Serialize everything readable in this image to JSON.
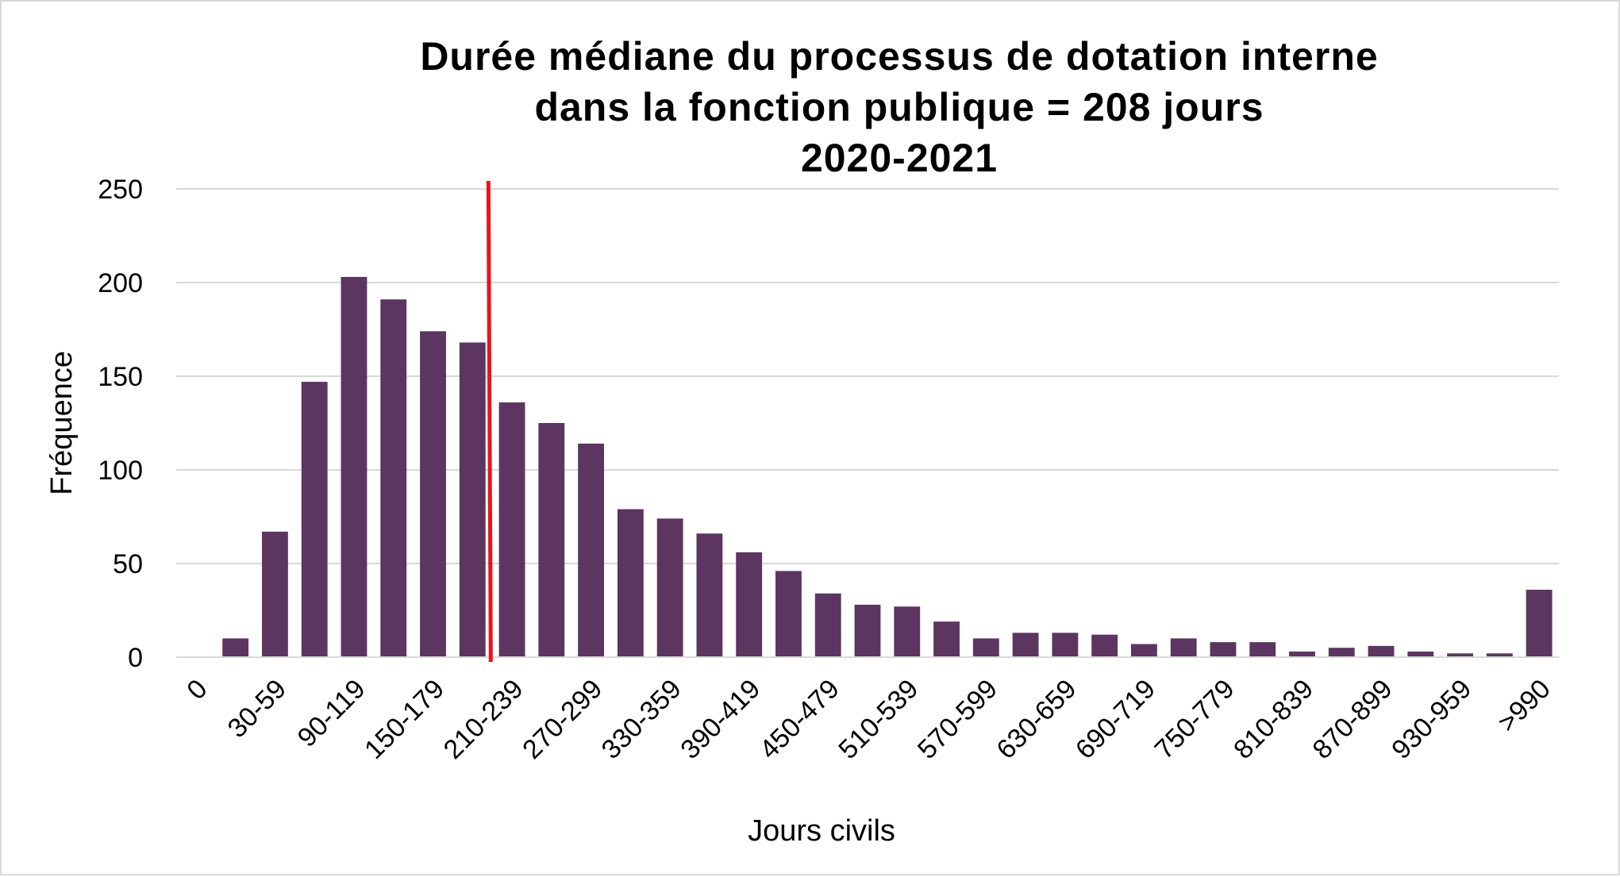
{
  "chart_data": {
    "type": "bar",
    "title": [
      "Durée médiane du processus de dotation interne",
      "dans la fonction publique = 208 jours",
      "2020-2021"
    ],
    "xlabel": "Jours civils",
    "ylabel": "Fréquence",
    "ylim": [
      0,
      250
    ],
    "yticks": [
      0,
      50,
      100,
      150,
      200,
      250
    ],
    "grid": true,
    "categories": [
      "0",
      "0-29",
      "30-59",
      "60-89",
      "90-119",
      "120-149",
      "150-179",
      "180-209",
      "210-239",
      "240-269",
      "270-299",
      "300-329",
      "330-359",
      "360-389",
      "390-419",
      "420-449",
      "450-479",
      "480-509",
      "510-539",
      "540-569",
      "570-599",
      "600-629",
      "630-659",
      "660-689",
      "690-719",
      "720-749",
      "750-779",
      "780-809",
      "810-839",
      "840-869",
      "870-899",
      "900-929",
      "930-959",
      "960-989",
      ">990"
    ],
    "xtick_labels": [
      "0",
      "",
      "30-59",
      "",
      "90-119",
      "",
      "150-179",
      "",
      "210-239",
      "",
      "270-299",
      "",
      "330-359",
      "",
      "390-419",
      "",
      "450-479",
      "",
      "510-539",
      "",
      "570-599",
      "",
      "630-659",
      "",
      "690-719",
      "",
      "750-779",
      "",
      "810-839",
      "",
      "870-899",
      "",
      "930-959",
      "",
      ">990"
    ],
    "values": [
      0,
      10,
      67,
      147,
      203,
      191,
      174,
      168,
      136,
      125,
      114,
      79,
      74,
      66,
      56,
      46,
      34,
      28,
      27,
      19,
      10,
      13,
      13,
      12,
      7,
      10,
      8,
      8,
      3,
      5,
      6,
      3,
      2,
      2,
      36
    ],
    "bar_color": "#5c3560",
    "median_line": {
      "value": 208,
      "color": "#e8141b"
    },
    "grid_color": "#d9d9d9"
  }
}
